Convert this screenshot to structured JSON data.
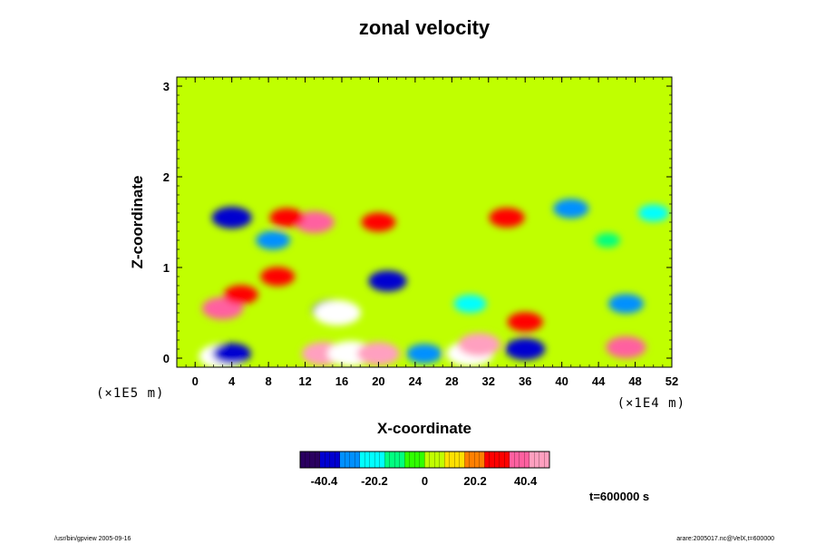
{
  "chart_data": {
    "type": "heatmap",
    "title": "zonal velocity",
    "xlabel": "X-coordinate",
    "ylabel": "Z-coordinate",
    "x_unit_label": "(×1E4 m)",
    "y_unit_label": "(×1E5 m)",
    "xlim": [
      -2,
      52
    ],
    "ylim": [
      -0.1,
      3.1
    ],
    "x_ticks": [
      0,
      4,
      8,
      12,
      16,
      20,
      24,
      28,
      32,
      36,
      40,
      44,
      48,
      52
    ],
    "y_ticks": [
      0,
      1,
      2,
      3
    ],
    "colorbar": {
      "ticks": [
        -40.4,
        -20.2,
        0,
        20.2,
        40.4
      ],
      "tick_labels": [
        "-40.4",
        "-20.2",
        "0",
        "20.2",
        "40.4"
      ],
      "range": [
        -50,
        50
      ],
      "colors": [
        "#2a0060",
        "#0000d0",
        "#0090ff",
        "#00ffff",
        "#00ff80",
        "#30ff00",
        "#c0ff00",
        "#ffe000",
        "#ff8000",
        "#ff0000",
        "#ff60a0",
        "#ffa0c0"
      ]
    },
    "background_value": 0,
    "features": [
      {
        "x": 3,
        "z": 0.02,
        "value": -52
      },
      {
        "x": 4,
        "z": 0.05,
        "value": -35
      },
      {
        "x": 14,
        "z": 0.05,
        "value": 44
      },
      {
        "x": 17,
        "z": 0.05,
        "value": 55
      },
      {
        "x": 20,
        "z": 0.05,
        "value": 42
      },
      {
        "x": 25,
        "z": 0.05,
        "value": -30
      },
      {
        "x": 30,
        "z": 0.05,
        "value": 55
      },
      {
        "x": 31,
        "z": 0.15,
        "value": 42
      },
      {
        "x": 36,
        "z": 0.1,
        "value": -38
      },
      {
        "x": 47,
        "z": 0.12,
        "value": 38
      },
      {
        "x": 15,
        "z": 0.52,
        "value": -40
      },
      {
        "x": 15.5,
        "z": 0.5,
        "value": -55
      },
      {
        "x": 3,
        "z": 0.55,
        "value": 40
      },
      {
        "x": 5,
        "z": 0.7,
        "value": 28
      },
      {
        "x": 9,
        "z": 0.9,
        "value": 28
      },
      {
        "x": 21,
        "z": 0.85,
        "value": -35
      },
      {
        "x": 30,
        "z": 0.6,
        "value": -25
      },
      {
        "x": 47,
        "z": 0.6,
        "value": -30
      },
      {
        "x": 36,
        "z": 0.4,
        "value": 30
      },
      {
        "x": 8.5,
        "z": 1.3,
        "value": -28
      },
      {
        "x": 4,
        "z": 1.55,
        "value": -38
      },
      {
        "x": 13,
        "z": 1.5,
        "value": 38
      },
      {
        "x": 10,
        "z": 1.55,
        "value": 28
      },
      {
        "x": 20,
        "z": 1.5,
        "value": 28
      },
      {
        "x": 34,
        "z": 1.55,
        "value": 30
      },
      {
        "x": 41,
        "z": 1.65,
        "value": -30
      },
      {
        "x": 50,
        "z": 1.6,
        "value": -22
      },
      {
        "x": 45,
        "z": 1.3,
        "value": -12
      }
    ],
    "time_label": "t=600000 s"
  },
  "footer": {
    "left": "/usr/bin/gpview 2005-09-16",
    "right": "arare:2005017.nc@VelX,t=600000"
  }
}
